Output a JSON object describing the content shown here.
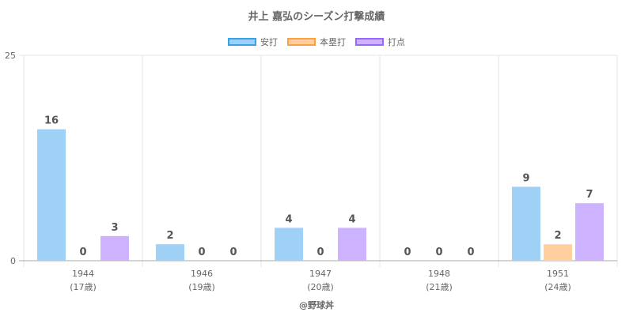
{
  "chart_data": {
    "type": "bar",
    "title": "井上 嘉弘のシーズン打撃成績",
    "categories": [
      {
        "year": "1944",
        "age": "(17歳)"
      },
      {
        "year": "1946",
        "age": "(19歳)"
      },
      {
        "year": "1947",
        "age": "(20歳)"
      },
      {
        "year": "1948",
        "age": "(21歳)"
      },
      {
        "year": "1951",
        "age": "(24歳)"
      }
    ],
    "series": [
      {
        "name": "安打",
        "values": [
          16,
          2,
          4,
          0,
          9
        ],
        "fill": "#9fd0f5",
        "border": "#36a2eb"
      },
      {
        "name": "本塁打",
        "values": [
          0,
          0,
          0,
          0,
          2
        ],
        "fill": "#ffcf9f",
        "border": "#ff9f40"
      },
      {
        "name": "打点",
        "values": [
          3,
          0,
          4,
          0,
          7
        ],
        "fill": "#ccb2ff",
        "border": "#9966ff"
      }
    ],
    "ylim": [
      0,
      25
    ],
    "yticks": [
      "0",
      "25"
    ],
    "legend_position": "top",
    "grid": true
  },
  "footer": "@野球丼"
}
